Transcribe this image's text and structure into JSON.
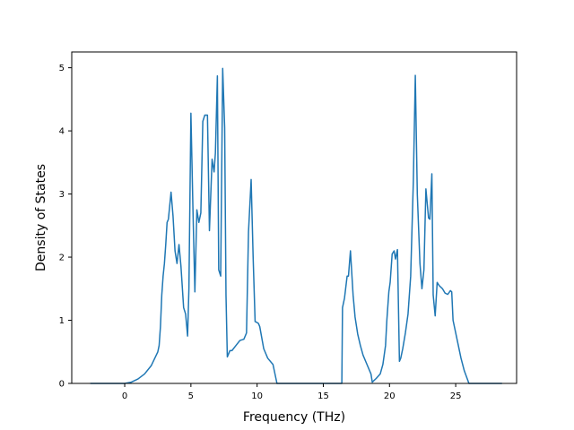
{
  "chart_data": {
    "type": "line",
    "title": "",
    "xlabel": "Frequency (THz)",
    "ylabel": "Density of States",
    "xlim": [
      -4.0,
      29.6
    ],
    "ylim": [
      0,
      5.25
    ],
    "xticks": [
      0,
      5,
      10,
      15,
      20,
      25
    ],
    "yticks": [
      0,
      1,
      2,
      3,
      4,
      5
    ],
    "grid": false,
    "legend": "none",
    "colors": {
      "line": "#1f77b4",
      "axes": "#000000",
      "background": "#ffffff"
    },
    "series": [
      {
        "x": [
          -2.6,
          0.0,
          0.5,
          1.0,
          1.5,
          2.0,
          2.5,
          2.6,
          2.7,
          2.8,
          2.9,
          3.0,
          3.1,
          3.2,
          3.3,
          3.5,
          3.65,
          3.8,
          3.95,
          4.1,
          4.25,
          4.45,
          4.6,
          4.75,
          4.85,
          5.0,
          5.15,
          5.3,
          5.45,
          5.6,
          5.75,
          5.9,
          6.05,
          6.25,
          6.4,
          6.6,
          6.75,
          6.85,
          7.0,
          7.1,
          7.25,
          7.4,
          7.55,
          7.65,
          7.75,
          7.95,
          8.1,
          8.4,
          8.7,
          9.0,
          9.2,
          9.35,
          9.55,
          9.7,
          9.85,
          9.95,
          10.1,
          10.2,
          10.5,
          10.6,
          10.8,
          11.2,
          11.5,
          11.65,
          11.75,
          12.0,
          14.0,
          15.0,
          16.4,
          16.45,
          16.6,
          16.8,
          16.9,
          17.05,
          17.25,
          17.4,
          17.6,
          17.8,
          18.0,
          18.3,
          18.6,
          18.7,
          19.0,
          19.3,
          19.5,
          19.7,
          19.8,
          19.95,
          20.05,
          20.2,
          20.35,
          20.45,
          20.6,
          20.75,
          20.85,
          21.0,
          21.2,
          21.4,
          21.6,
          21.8,
          21.95,
          22.1,
          22.3,
          22.45,
          22.6,
          22.75,
          22.85,
          22.95,
          23.05,
          23.2,
          23.3,
          23.45,
          23.6,
          23.75,
          24.0,
          24.2,
          24.4,
          24.6,
          24.7,
          24.8,
          25.0,
          25.2,
          25.4,
          25.65,
          26.0,
          28.5
        ],
        "y": [
          0.0,
          0.0,
          0.02,
          0.07,
          0.15,
          0.28,
          0.5,
          0.6,
          0.9,
          1.4,
          1.7,
          1.9,
          2.2,
          2.55,
          2.6,
          3.03,
          2.65,
          2.1,
          1.9,
          2.2,
          1.85,
          1.2,
          1.1,
          0.75,
          1.5,
          4.28,
          2.8,
          1.45,
          2.75,
          2.55,
          2.7,
          4.15,
          4.25,
          4.25,
          2.42,
          3.55,
          3.35,
          3.65,
          4.87,
          1.8,
          1.7,
          4.99,
          4.05,
          1.4,
          0.42,
          0.52,
          0.52,
          0.6,
          0.68,
          0.7,
          0.8,
          2.4,
          3.23,
          2.0,
          0.98,
          0.97,
          0.95,
          0.9,
          0.55,
          0.5,
          0.4,
          0.3,
          0.0,
          0.0,
          0.0,
          0.0,
          0.0,
          0.0,
          0.0,
          1.2,
          1.35,
          1.7,
          1.7,
          2.1,
          1.4,
          1.05,
          0.78,
          0.6,
          0.45,
          0.3,
          0.15,
          0.02,
          0.08,
          0.15,
          0.3,
          0.6,
          1.0,
          1.45,
          1.6,
          2.05,
          2.1,
          1.97,
          2.12,
          0.35,
          0.4,
          0.55,
          0.8,
          1.1,
          1.7,
          3.2,
          4.88,
          3.0,
          1.9,
          1.5,
          1.8,
          3.08,
          2.85,
          2.62,
          2.6,
          3.32,
          1.4,
          1.07,
          1.6,
          1.55,
          1.5,
          1.43,
          1.41,
          1.47,
          1.45,
          1.0,
          0.8,
          0.6,
          0.4,
          0.2,
          0.0,
          0.0
        ]
      }
    ]
  }
}
